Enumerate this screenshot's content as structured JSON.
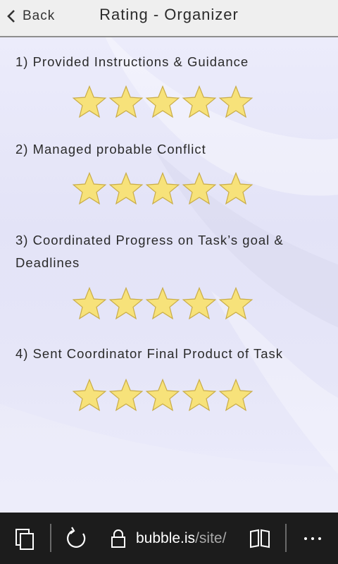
{
  "header": {
    "back_label": "Back",
    "title": "Rating - Organizer"
  },
  "questions": [
    {
      "label": "1) Provided Instructions & Guidance",
      "rating": 5,
      "max": 5
    },
    {
      "label": "2) Managed probable Conflict",
      "rating": 5,
      "max": 5
    },
    {
      "label": "3) Coordinated Progress on Task’s goal & Deadlines",
      "rating": 5,
      "max": 5
    },
    {
      "label": "4) Sent Coordinator Final Product of Task",
      "rating": 5,
      "max": 5
    }
  ],
  "browser": {
    "url_host": "bubble.is",
    "url_path": "/site/",
    "icons": [
      "tabs-icon",
      "refresh-icon",
      "lock-icon",
      "reading-view-icon",
      "more-icon"
    ]
  },
  "colors": {
    "star_fill": "#f7e27a",
    "star_stroke": "#c9ac48",
    "header_bg": "#efefef",
    "bottom_bar_bg": "#1c1c1c"
  }
}
